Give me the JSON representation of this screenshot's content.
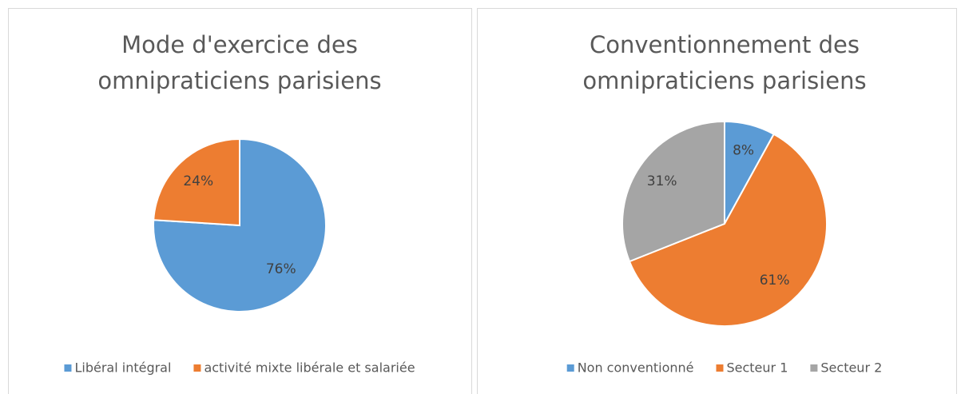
{
  "chart_data": [
    {
      "type": "pie",
      "title": [
        "Mode d'exercice des",
        "omnipraticiens parisiens"
      ],
      "categories": [
        "Libéral intégral",
        "activité mixte libérale et salariée"
      ],
      "values": [
        76,
        24
      ],
      "value_labels": [
        "76%",
        "24%"
      ],
      "colors": [
        "#5b9bd5",
        "#ed7d31"
      ],
      "legend": "bottom"
    },
    {
      "type": "pie",
      "title": [
        "Conventionnement des",
        "omnipraticiens parisiens"
      ],
      "categories": [
        "Non conventionné",
        "Secteur 1",
        "Secteur 2"
      ],
      "values": [
        8,
        61,
        31
      ],
      "value_labels": [
        "8%",
        "61%",
        "31%"
      ],
      "colors": [
        "#5b9bd5",
        "#ed7d31",
        "#a5a5a5"
      ],
      "legend": "bottom"
    }
  ]
}
